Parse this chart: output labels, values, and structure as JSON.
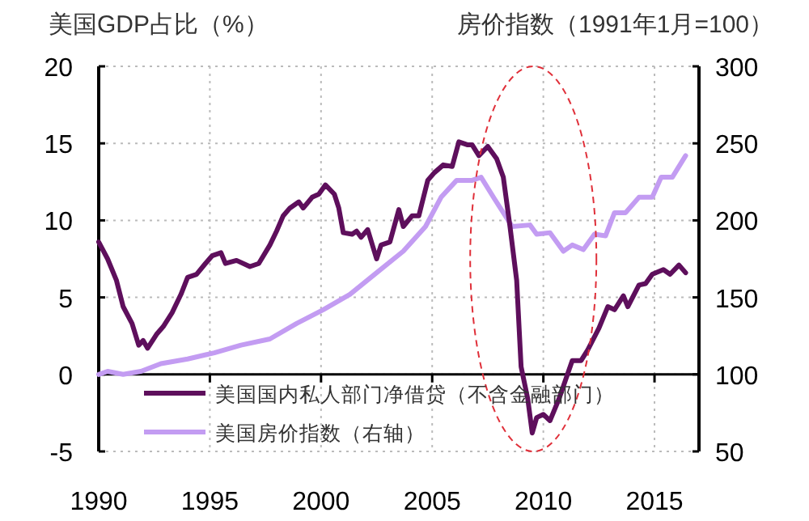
{
  "chart_data": {
    "type": "line",
    "ylabel": "美国GDP占比（%）",
    "y2label": "房价指数（1991年1月=100）",
    "xlim": [
      1990,
      2017
    ],
    "xticks": [
      1990,
      1995,
      2000,
      2005,
      2010,
      2015
    ],
    "ylim": [
      -5,
      20
    ],
    "yticks": [
      -5,
      0,
      5,
      10,
      15,
      20
    ],
    "y2lim": [
      50,
      300
    ],
    "y2ticks": [
      50,
      100,
      150,
      200,
      250,
      300
    ],
    "grid": true,
    "legend": "bottom left",
    "series": [
      {
        "name": "美国国内私人部门净借贷（不含金融部门）",
        "color": "#5e0f5c",
        "x": [
          1990,
          1990.4,
          1990.8,
          1991.1,
          1991.5,
          1991.8,
          1992.0,
          1992.2,
          1992.6,
          1992.9,
          1993.3,
          1993.7,
          1994.0,
          1994.4,
          1994.8,
          1995.1,
          1995.5,
          1995.7,
          1996.2,
          1996.8,
          1997.2,
          1997.7,
          1998.0,
          1998.3,
          1998.6,
          1999.0,
          1999.2,
          1999.6,
          1999.9,
          2000.2,
          2000.6,
          2000.8,
          2001.0,
          2001.4,
          2001.6,
          2001.8,
          2002.1,
          2002.5,
          2002.7,
          2003.1,
          2003.5,
          2003.7,
          2004.1,
          2004.4,
          2004.8,
          2005.1,
          2005.5,
          2005.9,
          2006.2,
          2006.6,
          2006.8,
          2007.1,
          2007.5,
          2007.9,
          2008.2,
          2008.5,
          2008.8,
          2009.0,
          2009.3,
          2009.5,
          2009.7,
          2010.0,
          2010.3,
          2010.7,
          2011.3,
          2011.7,
          2012.0,
          2012.5,
          2012.9,
          2013.2,
          2013.6,
          2013.8,
          2014.3,
          2014.6,
          2014.9,
          2015.4,
          2015.7,
          2016.1,
          2016.4
        ],
        "values": [
          8.6,
          7.5,
          6.1,
          4.4,
          3.3,
          1.9,
          2.2,
          1.7,
          2.6,
          3.1,
          4.0,
          5.2,
          6.3,
          6.5,
          7.2,
          7.7,
          7.9,
          7.2,
          7.4,
          7.0,
          7.2,
          8.4,
          9.3,
          10.3,
          10.8,
          11.2,
          10.8,
          11.5,
          11.7,
          12.3,
          11.7,
          10.8,
          9.2,
          9.1,
          9.3,
          8.9,
          9.4,
          7.5,
          8.4,
          8.6,
          10.7,
          9.6,
          10.3,
          10.3,
          12.6,
          13.1,
          13.6,
          13.5,
          15.1,
          14.9,
          14.9,
          14.2,
          14.8,
          14.0,
          12.8,
          9.6,
          6.1,
          0.5,
          -1.6,
          -3.8,
          -2.8,
          -2.6,
          -3.0,
          -1.6,
          0.9,
          0.9,
          1.6,
          3.0,
          4.4,
          4.2,
          5.1,
          4.4,
          5.8,
          5.9,
          6.5,
          6.8,
          6.5,
          7.1,
          6.6
        ]
      },
      {
        "name": "美国房价指数（右轴）",
        "color": "#c39cf2",
        "axis": "y2",
        "x": [
          1990,
          1990.4,
          1991.1,
          1991.9,
          1992.8,
          1994.0,
          1995.2,
          1996.4,
          1997.7,
          1998.9,
          2000.1,
          2001.3,
          2002.5,
          2003.7,
          2004.7,
          2005.4,
          2006.1,
          2006.8,
          2007.2,
          2007.8,
          2008.6,
          2009.4,
          2009.7,
          2010.3,
          2010.9,
          2011.3,
          2011.8,
          2012.3,
          2012.8,
          2013.2,
          2013.7,
          2014.3,
          2014.9,
          2015.3,
          2015.8,
          2016.4
        ],
        "values": [
          100,
          102,
          100,
          102,
          107,
          110,
          114,
          119,
          123,
          133,
          142,
          152,
          166,
          180,
          196,
          215,
          226,
          226,
          228,
          214,
          196,
          197,
          191,
          192,
          180,
          184,
          181,
          191,
          190,
          205,
          205,
          215,
          215,
          228,
          228,
          242
        ]
      }
    ]
  }
}
